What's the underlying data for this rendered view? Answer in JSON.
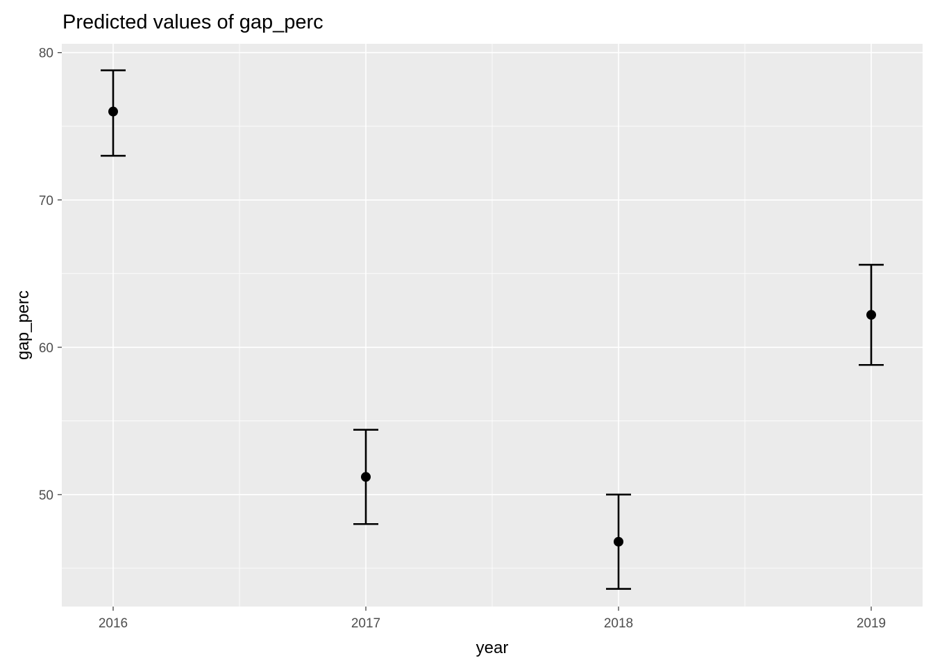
{
  "chart_data": {
    "type": "scatter",
    "title": "Predicted values of gap_perc",
    "xlabel": "year",
    "ylabel": "gap_perc",
    "categories": [
      "2016",
      "2017",
      "2018",
      "2019"
    ],
    "series": [
      {
        "values": [
          76.0,
          51.2,
          46.8,
          62.2
        ],
        "lower": [
          73.0,
          48.0,
          43.6,
          58.8
        ],
        "upper": [
          78.8,
          54.4,
          50.0,
          65.6
        ]
      }
    ],
    "ylim": [
      42.4,
      80.6
    ],
    "yticks": [
      50,
      60,
      70,
      80
    ],
    "grid": true,
    "legend": "none",
    "colors": {
      "panel": "#ebebeb",
      "grid": "#ffffff",
      "marks": "#000000",
      "tick_label": "#4d4d4d"
    }
  }
}
